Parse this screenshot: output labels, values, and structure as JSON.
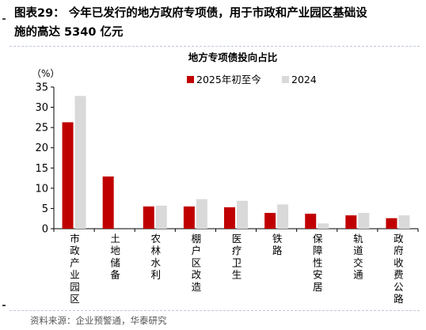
{
  "figure": {
    "title_line1": "图表29：  今年已发行的地方政府专项债，用于市政和产业园区基础设",
    "title_line2": "施的高达 5340 亿元",
    "source": "资料来源：企业预警通，华泰研究"
  },
  "chart_data": {
    "type": "bar",
    "title": "地方专项债投向占比",
    "ylabel": "（%）",
    "ylim": [
      0,
      35
    ],
    "yticks": [
      0,
      5,
      10,
      15,
      20,
      25,
      30,
      35
    ],
    "grid": false,
    "legend_position": "top-center",
    "categories": [
      "市政产业园区",
      "土地储备",
      "农林水利",
      "棚户区改造",
      "医疗卫生",
      "铁路",
      "保障性安居",
      "轨道交通",
      "政府收费公路"
    ],
    "series": [
      {
        "name": "2025年初至今",
        "color": "#c00000",
        "values": [
          26.3,
          12.9,
          5.5,
          5.5,
          5.3,
          3.9,
          3.7,
          3.3,
          2.6
        ]
      },
      {
        "name": "2024",
        "color": "#d9d9d9",
        "values": [
          32.8,
          0,
          5.7,
          7.3,
          6.9,
          6.0,
          1.3,
          3.9,
          3.3
        ]
      }
    ]
  }
}
